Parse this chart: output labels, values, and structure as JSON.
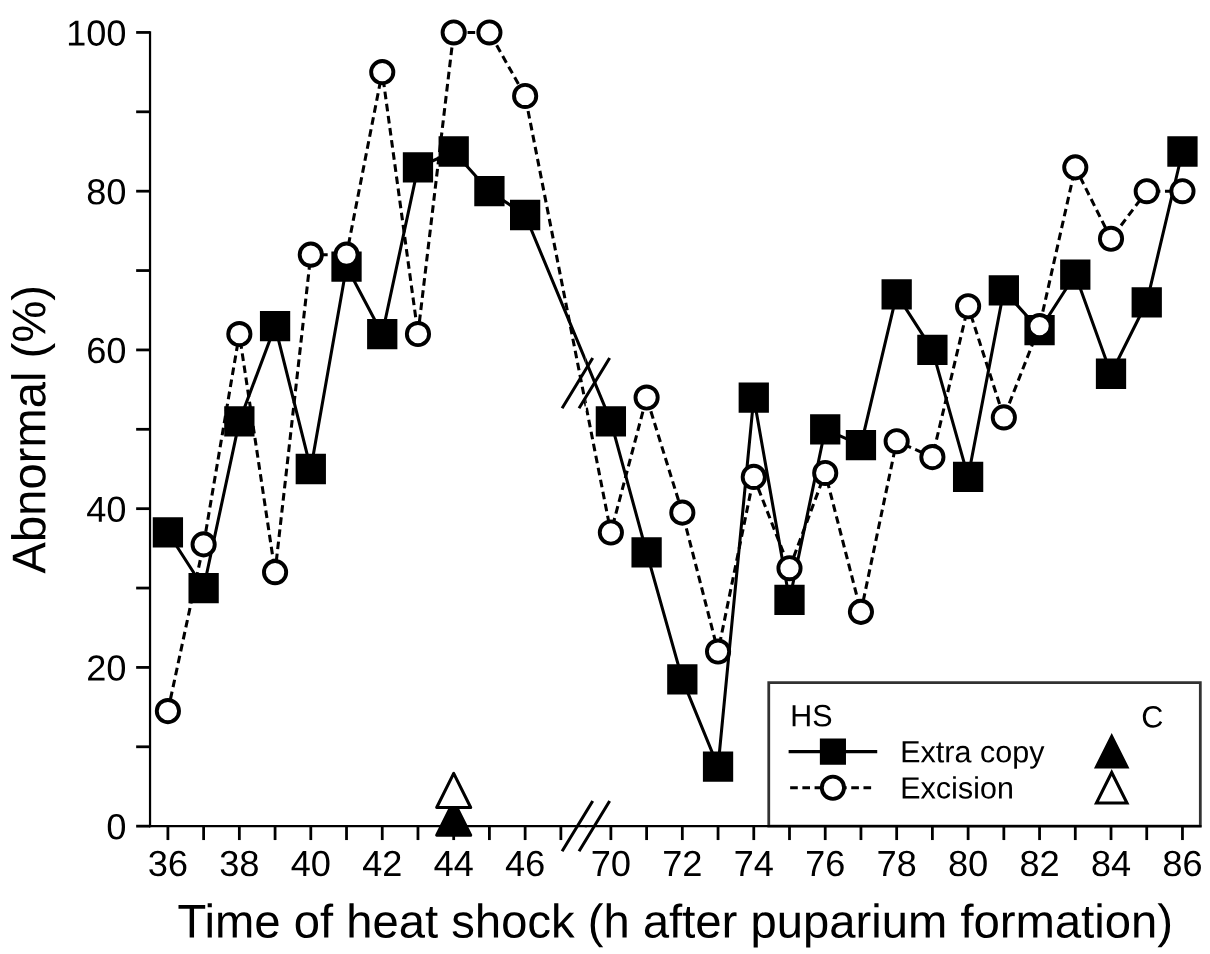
{
  "chart_data": [
    {
      "type": "line",
      "xlabel": "Time of heat shock (h after puparium formation)",
      "ylabel": "Abnormal (%)",
      "x": [
        36,
        37,
        38,
        39,
        40,
        41,
        42,
        43,
        44,
        45,
        46
      ],
      "series": [
        {
          "color": "#000000",
          "marker": "square",
          "line_style": "solid",
          "values": [
            37,
            30,
            51,
            63,
            45,
            70.5,
            62,
            83,
            85,
            80,
            77
          ]
        },
        {
          "color": "#ffffff",
          "marker": "circle",
          "line_style": "dashed",
          "values": [
            14.5,
            35.5,
            62,
            32,
            72,
            72,
            95,
            62,
            100,
            100,
            92
          ]
        },
        {
          "type": "scatter",
          "x": [
            44
          ],
          "color": "#000000",
          "marker": "triangle",
          "values": [
            1
          ]
        },
        {
          "type": "scatter",
          "x": [
            44
          ],
          "color": "#ffffff",
          "marker": "triangle",
          "values": [
            4.5
          ]
        }
      ],
      "xlim": [
        35.5,
        47.7
      ],
      "xticks": [
        36,
        {
          "value": 37,
          "label": null
        },
        38,
        {
          "value": 39,
          "label": null
        },
        40,
        {
          "value": 41,
          "label": null
        },
        42,
        {
          "value": 43,
          "label": null
        },
        44,
        {
          "value": 45,
          "label": null
        },
        46,
        {
          "value": 47,
          "label": null
        }
      ],
      "ylim": [
        0,
        100
      ],
      "yticks": [
        0,
        {
          "value": 10,
          "label": null
        },
        20,
        {
          "value": 30,
          "label": null
        },
        40,
        {
          "value": 50,
          "label": null
        },
        60,
        {
          "value": 70,
          "label": null
        },
        80,
        {
          "value": 90,
          "label": null
        },
        100
      ]
    },
    {
      "type": "line",
      "legend_title": "HS",
      "annotations": [
        "C"
      ],
      "x": [
        70,
        71,
        72,
        73,
        74,
        75,
        76,
        77,
        78,
        79,
        80,
        81,
        82,
        83,
        84,
        85,
        86
      ],
      "series": [
        {
          "name": "Extra copy",
          "color": "#000000",
          "marker": "square",
          "line_style": "solid",
          "values": [
            51,
            34.5,
            18.5,
            7.5,
            54,
            28.5,
            50,
            48,
            67,
            60,
            44,
            67.5,
            62.5,
            69.5,
            57,
            66,
            85
          ]
        },
        {
          "name": "Excision",
          "color": "#ffffff",
          "marker": "circle",
          "line_style": "dashed",
          "values": [
            37,
            54,
            39.5,
            22,
            44,
            32.5,
            44.5,
            27,
            48.5,
            46.5,
            65.5,
            51.5,
            63,
            83,
            74,
            80,
            80
          ]
        }
      ],
      "xlim": [
        69.3,
        86.5
      ],
      "xticks": [
        70,
        {
          "value": 71,
          "label": null
        },
        72,
        {
          "value": 73,
          "label": null
        },
        74,
        {
          "value": 75,
          "label": null
        },
        76,
        {
          "value": 77,
          "label": null
        },
        78,
        {
          "value": 79,
          "label": null
        },
        80,
        {
          "value": 81,
          "label": null
        },
        82,
        {
          "value": 83,
          "label": null
        },
        84,
        {
          "value": 85,
          "label": null
        },
        86
      ],
      "ylim": [
        0,
        100
      ],
      "tick_labels": "x",
      "legend": "bottom right"
    }
  ]
}
